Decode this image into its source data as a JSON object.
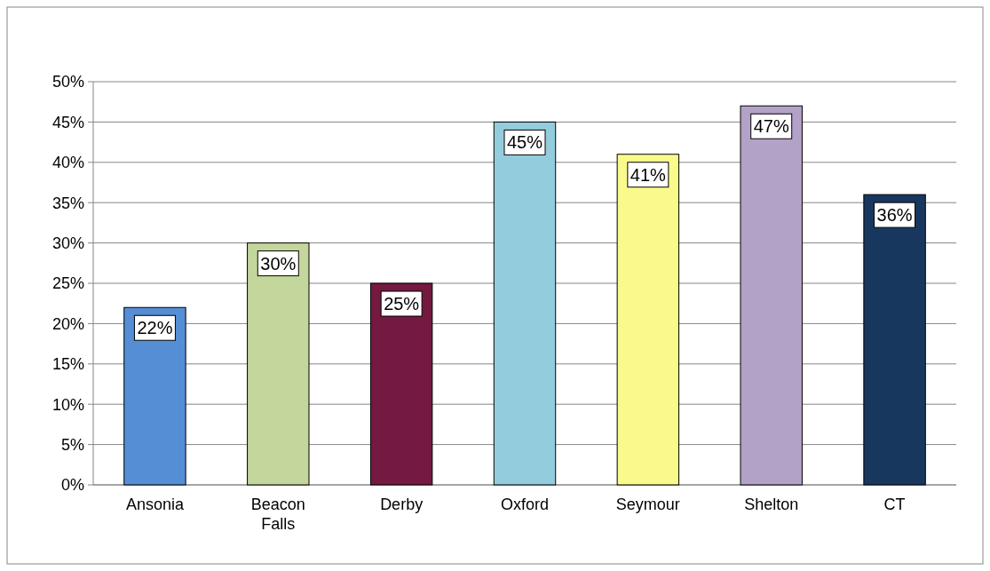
{
  "chart_data": {
    "type": "bar",
    "categories": [
      "Ansonia",
      "Beacon Falls",
      "Derby",
      "Oxford",
      "Seymour",
      "Shelton",
      "CT"
    ],
    "values": [
      22,
      30,
      25,
      45,
      41,
      47,
      36
    ],
    "colors": [
      "#558ed5",
      "#c3d69b",
      "#74193f",
      "#93cddd",
      "#fafa8c",
      "#b3a2c7",
      "#17375e"
    ],
    "value_labels": [
      "22%",
      "30%",
      "25%",
      "45%",
      "41%",
      "47%",
      "36%"
    ],
    "ylim": [
      0,
      50
    ],
    "yticks": [
      {
        "value": 0,
        "label": "0%"
      },
      {
        "value": 5,
        "label": "5%"
      },
      {
        "value": 10,
        "label": "10%"
      },
      {
        "value": 15,
        "label": "15%"
      },
      {
        "value": 20,
        "label": "20%"
      },
      {
        "value": 25,
        "label": "25%"
      },
      {
        "value": 30,
        "label": "30%"
      },
      {
        "value": 35,
        "label": "35%"
      },
      {
        "value": 40,
        "label": "40%"
      },
      {
        "value": 45,
        "label": "45%"
      },
      {
        "value": 50,
        "label": "50%"
      }
    ],
    "grid": "y"
  }
}
